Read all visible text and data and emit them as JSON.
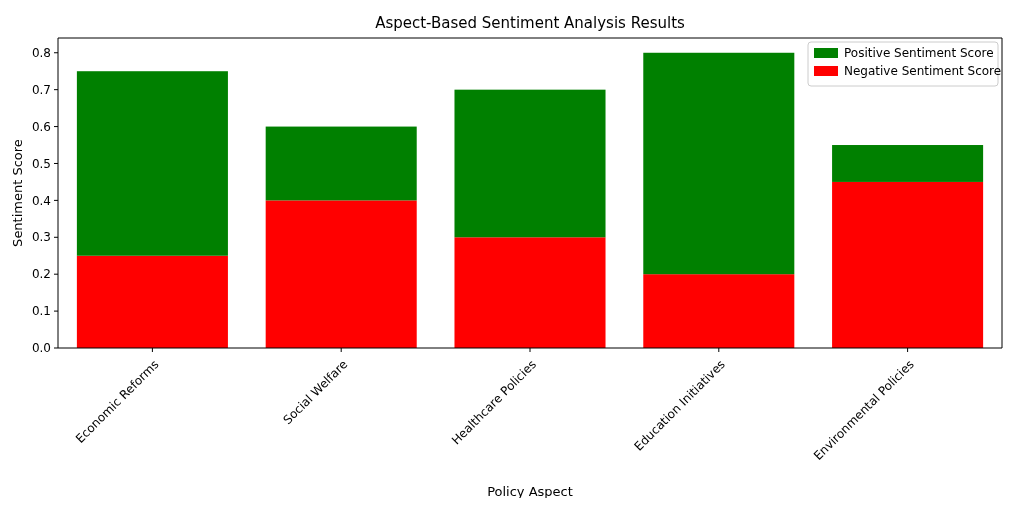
{
  "chart_data": {
    "type": "bar",
    "title": "Aspect-Based Sentiment Analysis Results",
    "xlabel": "Policy Aspect",
    "ylabel": "Sentiment Score",
    "categories": [
      "Economic Reforms",
      "Social Welfare",
      "Healthcare Policies",
      "Education Initiatives",
      "Environmental Policies"
    ],
    "stacked": true,
    "series": [
      {
        "name": "Negative Sentiment Score",
        "color": "#ff0000",
        "values": [
          0.25,
          0.4,
          0.3,
          0.2,
          0.45
        ]
      },
      {
        "name": "Positive Sentiment Score",
        "color": "#008000",
        "values": [
          0.5,
          0.2,
          0.4,
          0.6,
          0.1
        ]
      }
    ],
    "ylim": [
      0,
      0.84
    ],
    "yticks": [
      {
        "value": 0,
        "label": "0.0"
      },
      {
        "value": 0.1,
        "label": "0.1"
      },
      {
        "value": 0.2,
        "label": "0.2"
      },
      {
        "value": 0.3,
        "label": "0.3"
      },
      {
        "value": 0.4,
        "label": "0.4"
      },
      {
        "value": 0.5,
        "label": "0.5"
      },
      {
        "value": 0.6,
        "label": "0.6"
      },
      {
        "value": 0.7,
        "label": "0.7"
      },
      {
        "value": 0.8,
        "label": "0.8"
      }
    ],
    "legend": "top right"
  }
}
